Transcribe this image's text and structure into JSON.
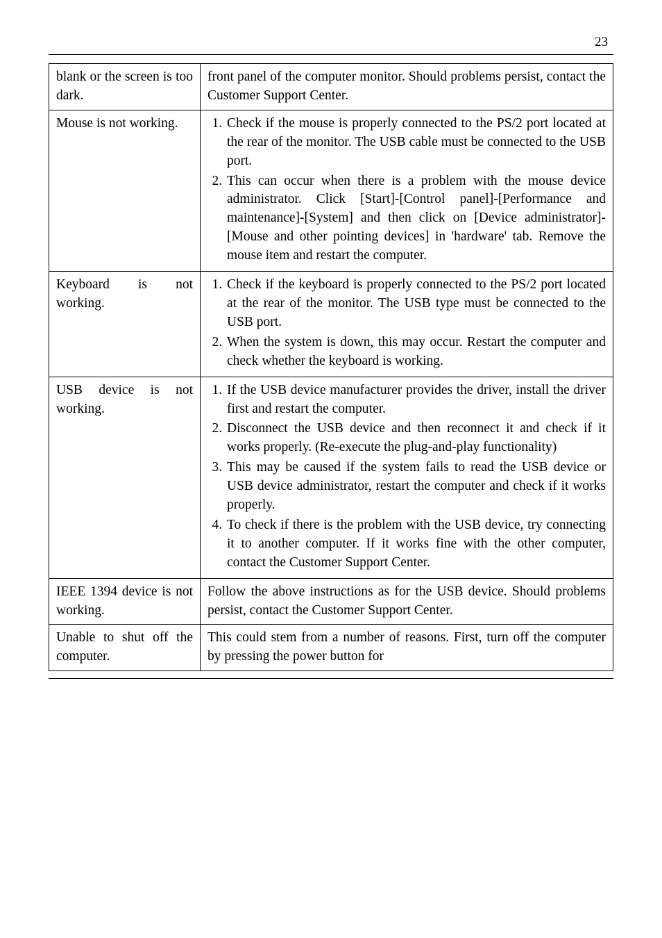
{
  "page_number": "23",
  "rows": [
    {
      "left": "blank or the screen is too dark.",
      "right_type": "text",
      "right_text": "front panel of the computer monitor. Should problems persist, contact the Customer Support Center."
    },
    {
      "left": "Mouse is not working.",
      "right_type": "list",
      "right_items": [
        "Check if the mouse is properly connected to the PS/2 port located at the rear of the monitor. The USB cable must be connected to the USB port.",
        "This can occur when there is a problem with the mouse device administrator. Click [Start]-[Control panel]-[Performance and maintenance]-[System] and then click on [Device administrator]-[Mouse and other pointing devices] in 'hardware' tab. Remove the mouse item and restart the computer."
      ]
    },
    {
      "left": "Keyboard is not working.",
      "right_type": "list",
      "right_items": [
        "Check if the keyboard is properly connected to the PS/2 port located at the rear of the monitor. The USB type must be connected to the USB port.",
        "When the system is down, this may occur. Restart the computer and check whether the keyboard is working."
      ]
    },
    {
      "left": "USB device is not working.",
      "right_type": "list",
      "right_items": [
        "If the USB device manufacturer provides the driver, install the driver first and restart the computer.",
        "Disconnect the USB device and then reconnect it and check if it works properly. (Re-execute the plug-and-play functionality)",
        "This may be caused if the system fails to read the USB device or USB device administrator, restart the computer and check if it works properly.",
        "To check if there is the problem with the USB device, try connecting it to another computer. If it works fine with the other computer, contact the Customer Support Center."
      ]
    },
    {
      "left": "IEEE 1394 device is not working.",
      "right_type": "text",
      "right_text": "Follow the above instructions as for the USB device. Should problems persist, contact the Customer Support Center."
    },
    {
      "left": "Unable to shut off the computer.",
      "right_type": "text",
      "right_text": "This could stem from a number of reasons. First, turn off the computer by pressing the power button for"
    }
  ]
}
